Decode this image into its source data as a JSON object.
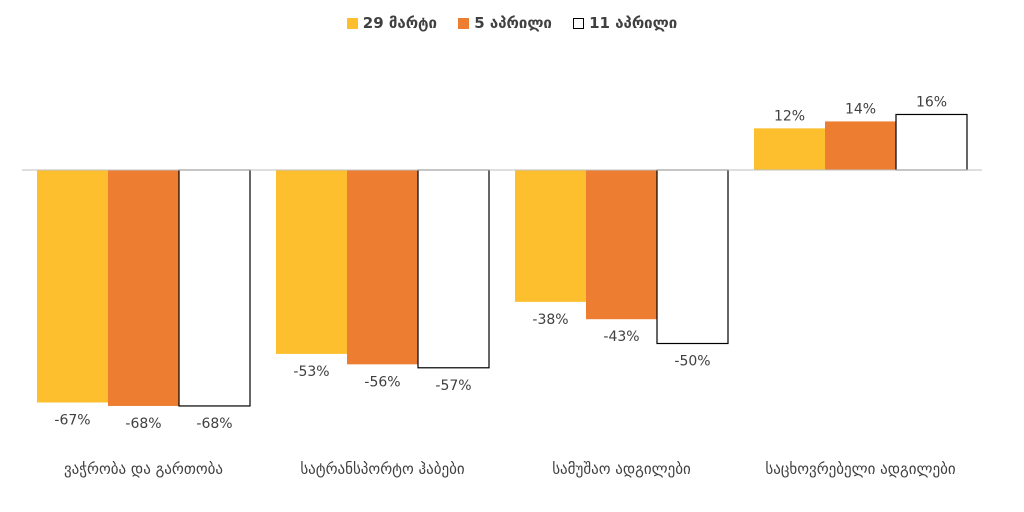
{
  "chart_data": {
    "type": "bar",
    "title": "",
    "xlabel": "",
    "ylabel": "",
    "categories": [
      "ვაჭრობა და გართობა",
      "სატრანსპორტო ჰაბები",
      "სამუშაო ადგილები",
      "საცხოვრებელი ადგილები"
    ],
    "series": [
      {
        "name": "29 მარტი",
        "values": [
          -67,
          -53,
          -38,
          12
        ],
        "labels": [
          "-67%",
          "-53%",
          "-38%",
          "12%"
        ],
        "color": "#FDBF2D"
      },
      {
        "name": "5 აპრილი",
        "values": [
          -68,
          -56,
          -43,
          14
        ],
        "labels": [
          "-68%",
          "-56%",
          "-43%",
          "14%"
        ],
        "color": "#ED7D31"
      },
      {
        "name": "11 აპრილი",
        "values": [
          -68,
          -57,
          -50,
          16
        ],
        "labels": [
          "-68%",
          "-57%",
          "-50%",
          "16%"
        ],
        "color": "#FFFFFF"
      }
    ],
    "ylim": [
      -70,
      20
    ],
    "legend_position": "top",
    "grid": false,
    "unit": "%"
  }
}
